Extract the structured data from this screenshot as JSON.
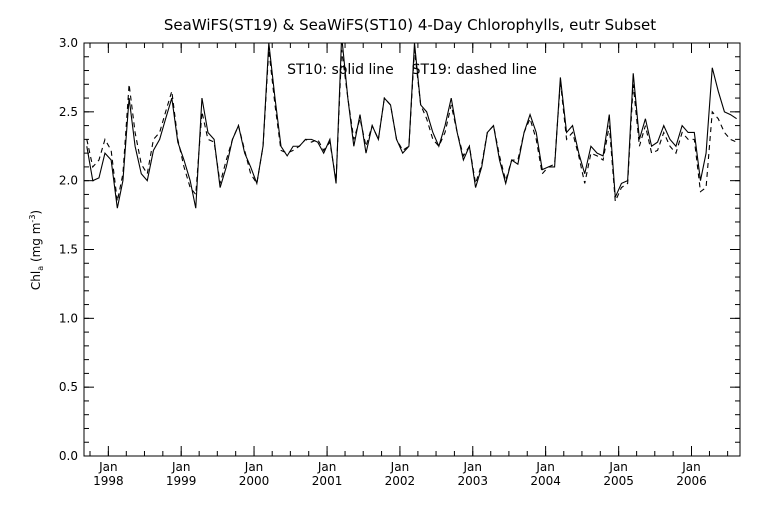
{
  "chart_data": {
    "type": "line",
    "title": "SeaWiFS(ST19) & SeaWiFS(ST10) 4-Day Chlorophylls, eutr Subset",
    "annotation": "ST10: solid line    ST19: dashed line",
    "ylabel": "Chl",
    "ylabel_sub": "a",
    "ylabel_units": " (mg m",
    "ylabel_exp": "-3",
    "ylabel_close": ")",
    "ylim": [
      0.0,
      3.0
    ],
    "yticks": [
      "0.0",
      "0.5",
      "1.0",
      "1.5",
      "2.0",
      "2.5",
      "3.0"
    ],
    "xlim": [
      "1997-09-01",
      "2006-09-01"
    ],
    "xtick_month": "Jan",
    "xticks": [
      "1998",
      "1999",
      "2000",
      "2001",
      "2002",
      "2003",
      "2004",
      "2005",
      "2006"
    ],
    "grid": false,
    "x": [
      "1997-09-15",
      "1997-10-15",
      "1997-11-15",
      "1997-12-15",
      "1998-01-15",
      "1998-02-15",
      "1998-03-15",
      "1998-04-15",
      "1998-05-15",
      "1998-06-15",
      "1998-07-15",
      "1998-08-15",
      "1998-09-15",
      "1998-10-15",
      "1998-11-15",
      "1998-12-15",
      "1999-01-15",
      "1999-02-15",
      "1999-03-15",
      "1999-04-15",
      "1999-05-15",
      "1999-06-15",
      "1999-07-15",
      "1999-08-15",
      "1999-09-15",
      "1999-10-15",
      "1999-11-15",
      "1999-12-15",
      "2000-01-15",
      "2000-02-15",
      "2000-03-15",
      "2000-04-15",
      "2000-05-15",
      "2000-06-15",
      "2000-07-15",
      "2000-08-15",
      "2000-09-15",
      "2000-10-15",
      "2000-11-15",
      "2000-12-15",
      "2001-01-15",
      "2001-02-15",
      "2001-03-15",
      "2001-04-15",
      "2001-05-15",
      "2001-06-15",
      "2001-07-15",
      "2001-08-15",
      "2001-09-15",
      "2001-10-15",
      "2001-11-15",
      "2001-12-15",
      "2002-01-15",
      "2002-02-15",
      "2002-03-15",
      "2002-04-15",
      "2002-05-15",
      "2002-06-15",
      "2002-07-15",
      "2002-08-15",
      "2002-09-15",
      "2002-10-15",
      "2002-11-15",
      "2002-12-15",
      "2003-01-15",
      "2003-02-15",
      "2003-03-15",
      "2003-04-15",
      "2003-05-15",
      "2003-06-15",
      "2003-07-15",
      "2003-08-15",
      "2003-09-15",
      "2003-10-15",
      "2003-11-15",
      "2003-12-15",
      "2004-01-15",
      "2004-02-15",
      "2004-03-15",
      "2004-04-15",
      "2004-05-15",
      "2004-06-15",
      "2004-07-15",
      "2004-08-15",
      "2004-09-15",
      "2004-10-15",
      "2004-11-15",
      "2004-12-15",
      "2005-01-15",
      "2005-02-15",
      "2005-03-15",
      "2005-04-15",
      "2005-05-15",
      "2005-06-15",
      "2005-07-15",
      "2005-08-15",
      "2005-09-15",
      "2005-10-15",
      "2005-11-15",
      "2005-12-15",
      "2006-01-15",
      "2006-02-15",
      "2006-03-15",
      "2006-04-15",
      "2006-05-15",
      "2006-06-15",
      "2006-07-15",
      "2006-08-15"
    ],
    "series": [
      {
        "name": "ST10",
        "style": "solid",
        "color": "#000000",
        "values": [
          2.25,
          2.0,
          2.02,
          2.2,
          2.15,
          1.8,
          2.0,
          2.6,
          2.25,
          2.05,
          2.0,
          2.22,
          2.3,
          2.45,
          2.6,
          2.28,
          2.15,
          2.0,
          1.8,
          2.6,
          2.35,
          2.3,
          1.95,
          2.1,
          2.3,
          2.4,
          2.2,
          2.1,
          1.98,
          2.25,
          3.0,
          2.6,
          2.25,
          2.18,
          2.25,
          2.25,
          2.3,
          2.3,
          2.28,
          2.2,
          2.3,
          1.98,
          3.05,
          2.6,
          2.25,
          2.48,
          2.2,
          2.4,
          2.3,
          2.6,
          2.55,
          2.3,
          2.2,
          2.25,
          3.0,
          2.55,
          2.5,
          2.35,
          2.25,
          2.4,
          2.6,
          2.35,
          2.15,
          2.25,
          1.95,
          2.1,
          2.35,
          2.4,
          2.15,
          1.98,
          2.15,
          2.12,
          2.35,
          2.48,
          2.35,
          2.08,
          2.1,
          2.1,
          2.75,
          2.35,
          2.4,
          2.2,
          2.05,
          2.25,
          2.2,
          2.18,
          2.48,
          1.88,
          1.98,
          2.0,
          2.78,
          2.3,
          2.45,
          2.25,
          2.28,
          2.4,
          2.3,
          2.25,
          2.4,
          2.35,
          2.35,
          2.0,
          2.2,
          2.82,
          2.65,
          2.5,
          2.48,
          2.45
        ]
      },
      {
        "name": "ST19",
        "style": "dashed",
        "color": "#000000",
        "values": [
          2.3,
          2.1,
          2.15,
          2.3,
          2.22,
          1.85,
          2.05,
          2.7,
          2.35,
          2.12,
          2.05,
          2.3,
          2.35,
          2.5,
          2.65,
          2.3,
          2.1,
          1.95,
          1.9,
          2.5,
          2.3,
          2.28,
          1.98,
          2.15,
          2.3,
          2.4,
          2.22,
          2.05,
          1.98,
          2.25,
          2.95,
          2.55,
          2.22,
          2.2,
          2.22,
          2.25,
          2.3,
          2.28,
          2.3,
          2.22,
          2.28,
          2.0,
          2.95,
          2.6,
          2.3,
          2.45,
          2.25,
          2.4,
          2.3,
          2.6,
          2.55,
          2.3,
          2.22,
          2.25,
          2.95,
          2.55,
          2.45,
          2.3,
          2.25,
          2.35,
          2.55,
          2.35,
          2.18,
          2.25,
          1.98,
          2.12,
          2.35,
          2.4,
          2.18,
          2.0,
          2.15,
          2.15,
          2.35,
          2.45,
          2.3,
          2.05,
          2.1,
          2.12,
          2.72,
          2.3,
          2.35,
          2.18,
          1.98,
          2.2,
          2.18,
          2.15,
          2.4,
          1.85,
          1.95,
          1.98,
          2.7,
          2.25,
          2.4,
          2.2,
          2.22,
          2.35,
          2.25,
          2.2,
          2.35,
          2.3,
          2.3,
          1.92,
          1.95,
          2.5,
          2.45,
          2.35,
          2.3,
          2.28
        ]
      }
    ]
  }
}
